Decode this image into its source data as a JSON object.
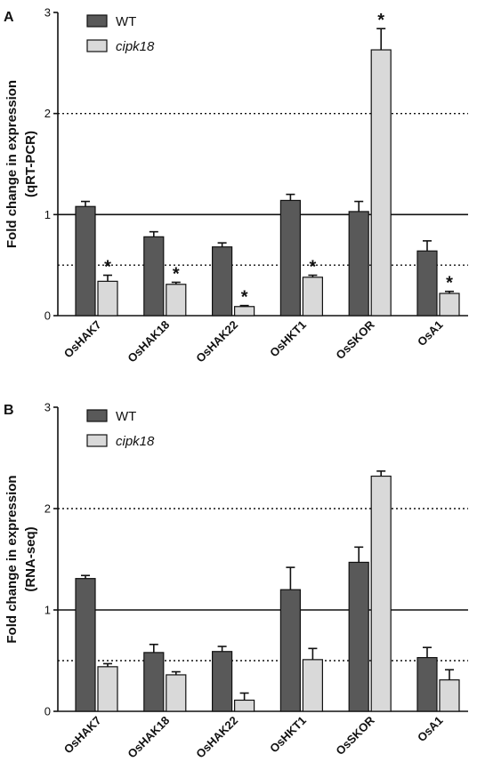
{
  "chart_data": [
    {
      "type": "bar",
      "panel": "A",
      "title": "",
      "ylabel_line1": "Fold change in expression",
      "ylabel_line2": "(qRT-PCR)",
      "xlabel": "",
      "ylim": [
        0,
        3
      ],
      "yticks": [
        "0",
        "1",
        "2",
        "3"
      ],
      "reference_lines": [
        {
          "y": 1,
          "style": "solid"
        },
        {
          "y": 0.5,
          "style": "dotted"
        },
        {
          "y": 2,
          "style": "dotted"
        }
      ],
      "categories": [
        "OsHAK7",
        "OsHAK18",
        "OsHAK22",
        "OsHKT1",
        "OsSKOR",
        "OsA1"
      ],
      "legend_position": "top-left",
      "series": [
        {
          "name": "WT",
          "color": "#595959",
          "values": [
            1.08,
            0.78,
            0.68,
            1.14,
            1.03,
            0.64
          ],
          "errors": [
            0.05,
            0.05,
            0.04,
            0.06,
            0.1,
            0.1
          ],
          "significance": [
            "",
            "",
            "",
            "",
            "",
            ""
          ]
        },
        {
          "name": "cipk18",
          "name_style": "italic",
          "color": "#d9d9d9",
          "values": [
            0.34,
            0.31,
            0.09,
            0.38,
            2.63,
            0.22
          ],
          "errors": [
            0.06,
            0.02,
            0.01,
            0.02,
            0.21,
            0.02
          ],
          "significance": [
            "*",
            "*",
            "*",
            "*",
            "*",
            "*"
          ]
        }
      ]
    },
    {
      "type": "bar",
      "panel": "B",
      "title": "",
      "ylabel_line1": "Fold change in expression",
      "ylabel_line2": "(RNA-seq)",
      "xlabel": "",
      "ylim": [
        0,
        3
      ],
      "yticks": [
        "0",
        "1",
        "2",
        "3"
      ],
      "reference_lines": [
        {
          "y": 1,
          "style": "solid"
        },
        {
          "y": 0.5,
          "style": "dotted"
        },
        {
          "y": 2,
          "style": "dotted"
        }
      ],
      "categories": [
        "OsHAK7",
        "OsHAK18",
        "OsHAK22",
        "OsHKT1",
        "OsSKOR",
        "OsA1"
      ],
      "legend_position": "top-left",
      "series": [
        {
          "name": "WT",
          "color": "#595959",
          "values": [
            1.31,
            0.58,
            0.59,
            1.2,
            1.47,
            0.53
          ],
          "errors": [
            0.03,
            0.08,
            0.05,
            0.22,
            0.15,
            0.1
          ],
          "significance": [
            "",
            "",
            "",
            "",
            "",
            ""
          ]
        },
        {
          "name": "cipk18",
          "name_style": "italic",
          "color": "#d9d9d9",
          "values": [
            0.44,
            0.36,
            0.11,
            0.51,
            2.32,
            0.31
          ],
          "errors": [
            0.03,
            0.03,
            0.07,
            0.11,
            0.05,
            0.1
          ],
          "significance": [
            "",
            "",
            "",
            "",
            "",
            ""
          ]
        }
      ]
    }
  ]
}
